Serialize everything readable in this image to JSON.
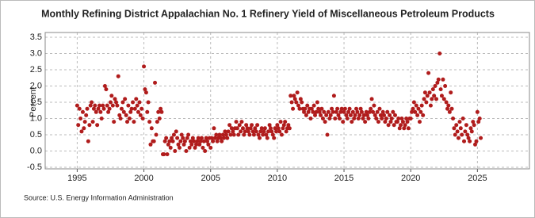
{
  "chart_data": {
    "type": "scatter",
    "title": "Monthly Refining District Appalachian No. 1 Refinery Yield of Miscellaneous Petroleum Products",
    "y_label": "Percent",
    "source": "Source: U.S. Energy Information Administration",
    "color": "#b01c1c",
    "grid": true,
    "xlim": [
      1992.6,
      2028.9
    ],
    "xticks": [
      1995,
      2000,
      2005,
      2010,
      2015,
      2020,
      2025
    ],
    "ylim": [
      -0.5,
      3.5
    ],
    "yticks": [
      {
        "value": -0.5,
        "label": "-0.5"
      },
      {
        "value": 0,
        "label": "0.0"
      },
      {
        "value": 0.5,
        "label": "0.5"
      },
      {
        "value": 1,
        "label": "1.0"
      },
      {
        "value": 1.5,
        "label": "1.5"
      },
      {
        "value": 2,
        "label": "2.0"
      },
      {
        "value": 2.5,
        "label": "2.5"
      },
      {
        "value": 3,
        "label": "3.0"
      },
      {
        "value": 3.5,
        "label": "3.5"
      }
    ],
    "x": [
      1995,
      1995.08,
      1995.17,
      1995.25,
      1995.33,
      1995.42,
      1995.5,
      1995.58,
      1995.67,
      1995.75,
      1995.83,
      1995.92,
      1996,
      1996.08,
      1996.17,
      1996.25,
      1996.33,
      1996.42,
      1996.5,
      1996.58,
      1996.67,
      1996.75,
      1996.83,
      1996.92,
      1997,
      1997.08,
      1997.17,
      1997.25,
      1997.33,
      1997.42,
      1997.5,
      1997.58,
      1997.67,
      1997.75,
      1997.83,
      1997.92,
      1998,
      1998.08,
      1998.17,
      1998.25,
      1998.33,
      1998.42,
      1998.5,
      1998.58,
      1998.67,
      1998.75,
      1998.83,
      1998.92,
      1999,
      1999.08,
      1999.17,
      1999.25,
      1999.33,
      1999.42,
      1999.5,
      1999.58,
      1999.67,
      1999.75,
      1999.83,
      1999.92,
      2000,
      2000.08,
      2000.17,
      2000.25,
      2000.33,
      2000.42,
      2000.5,
      2000.58,
      2000.67,
      2000.75,
      2000.83,
      2000.92,
      2001,
      2001.08,
      2001.17,
      2001.25,
      2001.33,
      2001.42,
      2001.5,
      2001.58,
      2001.67,
      2001.75,
      2001.83,
      2001.92,
      2002,
      2002.08,
      2002.17,
      2002.25,
      2002.33,
      2002.42,
      2002.5,
      2002.58,
      2002.67,
      2002.75,
      2002.83,
      2002.92,
      2003,
      2003.08,
      2003.17,
      2003.25,
      2003.33,
      2003.42,
      2003.5,
      2003.58,
      2003.67,
      2003.75,
      2003.83,
      2003.92,
      2004,
      2004.08,
      2004.17,
      2004.25,
      2004.33,
      2004.42,
      2004.5,
      2004.58,
      2004.67,
      2004.75,
      2004.83,
      2004.92,
      2005,
      2005.08,
      2005.17,
      2005.25,
      2005.33,
      2005.42,
      2005.5,
      2005.58,
      2005.67,
      2005.75,
      2005.83,
      2005.92,
      2006,
      2006.08,
      2006.17,
      2006.25,
      2006.33,
      2006.42,
      2006.5,
      2006.58,
      2006.67,
      2006.75,
      2006.83,
      2006.92,
      2007,
      2007.08,
      2007.17,
      2007.25,
      2007.33,
      2007.42,
      2007.5,
      2007.58,
      2007.67,
      2007.75,
      2007.83,
      2007.92,
      2008,
      2008.08,
      2008.17,
      2008.25,
      2008.33,
      2008.42,
      2008.5,
      2008.58,
      2008.67,
      2008.75,
      2008.83,
      2008.92,
      2009,
      2009.08,
      2009.17,
      2009.25,
      2009.33,
      2009.42,
      2009.5,
      2009.58,
      2009.67,
      2009.75,
      2009.83,
      2009.92,
      2010,
      2010.08,
      2010.17,
      2010.25,
      2010.33,
      2010.42,
      2010.5,
      2010.58,
      2010.67,
      2010.75,
      2010.83,
      2010.92,
      2011,
      2011.08,
      2011.17,
      2011.25,
      2011.33,
      2011.42,
      2011.5,
      2011.58,
      2011.67,
      2011.75,
      2011.83,
      2011.92,
      2012,
      2012.08,
      2012.17,
      2012.25,
      2012.33,
      2012.42,
      2012.5,
      2012.58,
      2012.67,
      2012.75,
      2012.83,
      2012.92,
      2013,
      2013.08,
      2013.17,
      2013.25,
      2013.33,
      2013.42,
      2013.5,
      2013.58,
      2013.67,
      2013.75,
      2013.83,
      2013.92,
      2014,
      2014.08,
      2014.17,
      2014.25,
      2014.33,
      2014.42,
      2014.5,
      2014.58,
      2014.67,
      2014.75,
      2014.83,
      2014.92,
      2015,
      2015.08,
      2015.17,
      2015.25,
      2015.33,
      2015.42,
      2015.5,
      2015.58,
      2015.67,
      2015.75,
      2015.83,
      2015.92,
      2016,
      2016.08,
      2016.17,
      2016.25,
      2016.33,
      2016.42,
      2016.5,
      2016.58,
      2016.67,
      2016.75,
      2016.83,
      2016.92,
      2017,
      2017.08,
      2017.17,
      2017.25,
      2017.33,
      2017.42,
      2017.5,
      2017.58,
      2017.67,
      2017.75,
      2017.83,
      2017.92,
      2018,
      2018.08,
      2018.17,
      2018.25,
      2018.33,
      2018.42,
      2018.5,
      2018.58,
      2018.67,
      2018.75,
      2018.83,
      2018.92,
      2019,
      2019.08,
      2019.17,
      2019.25,
      2019.33,
      2019.42,
      2019.5,
      2019.58,
      2019.67,
      2019.75,
      2019.83,
      2019.92,
      2020,
      2020.08,
      2020.17,
      2020.25,
      2020.33,
      2020.42,
      2020.5,
      2020.58,
      2020.67,
      2020.75,
      2020.83,
      2020.92,
      2021,
      2021.08,
      2021.17,
      2021.25,
      2021.33,
      2021.42,
      2021.5,
      2021.58,
      2021.67,
      2021.75,
      2021.83,
      2021.92,
      2022,
      2022.08,
      2022.17,
      2022.25,
      2022.33,
      2022.42,
      2022.5,
      2022.58,
      2022.67,
      2022.75,
      2022.83,
      2022.92,
      2023,
      2023.08,
      2023.17,
      2023.25,
      2023.33,
      2023.42,
      2023.5,
      2023.58,
      2023.67,
      2023.75,
      2023.83,
      2023.92,
      2024,
      2024.08,
      2024.17,
      2024.25,
      2024.33,
      2024.42,
      2024.5,
      2024.58,
      2024.67,
      2024.75,
      2024.83,
      2024.92,
      2025,
      2025.08,
      2025.17,
      2025.25
    ],
    "values": [
      1.4,
      0.8,
      1.3,
      1.0,
      0.6,
      1.2,
      0.7,
      0.9,
      1.1,
      1.3,
      0.3,
      0.8,
      1.4,
      1.5,
      0.9,
      1.3,
      1.4,
      1.2,
      0.8,
      1.3,
      1.4,
      1.2,
      1.0,
      1.4,
      1.3,
      2.0,
      1.9,
      1.4,
      1.2,
      1.3,
      1.5,
      1.7,
      1.4,
      0.9,
      1.6,
      1.5,
      1.4,
      2.3,
      1.1,
      1.0,
      1.3,
      1.5,
      1.2,
      1.6,
      1.1,
      0.9,
      1.4,
      1.0,
      1.2,
      1.3,
      1.5,
      0.9,
      1.3,
      1.6,
      1.4,
      1.2,
      1.5,
      1.1,
      1.3,
      1.0,
      2.6,
      1.9,
      1.8,
      1.2,
      1.5,
      0.9,
      0.2,
      0.7,
      0.3,
      0.3,
      2.1,
      0.5,
      0.9,
      1.2,
      1.0,
      1.3,
      1.2,
      -0.1,
      -0.1,
      0.3,
      0.4,
      -0.1,
      0.2,
      0.3,
      0.1,
      0.4,
      0.3,
      0.5,
      0.0,
      0.6,
      0.4,
      0.2,
      0.1,
      0.3,
      0.5,
      0.4,
      0.2,
      0.3,
      0.0,
      0.4,
      0.5,
      0.1,
      0.3,
      0.2,
      0.4,
      0.3,
      0.1,
      0.2,
      0.3,
      0.4,
      0.2,
      0.3,
      0.4,
      0.1,
      0.3,
      0.0,
      0.4,
      0.3,
      0.2,
      0.4,
      0.1,
      0.4,
      0.3,
      0.7,
      0.4,
      0.5,
      0.3,
      0.4,
      0.5,
      0.4,
      0.3,
      0.5,
      0.4,
      0.6,
      0.5,
      0.4,
      0.6,
      0.8,
      0.5,
      0.7,
      0.6,
      0.5,
      0.7,
      0.9,
      0.7,
      0.5,
      0.8,
      0.6,
      0.9,
      0.7,
      0.5,
      0.6,
      0.8,
      0.7,
      0.6,
      0.5,
      0.7,
      0.8,
      0.6,
      0.5,
      0.7,
      0.6,
      0.8,
      0.5,
      0.4,
      0.6,
      0.7,
      0.5,
      0.6,
      0.7,
      0.5,
      0.4,
      0.6,
      0.8,
      0.7,
      0.6,
      0.5,
      0.4,
      0.7,
      0.6,
      0.8,
      0.7,
      0.6,
      0.9,
      0.5,
      0.7,
      0.8,
      0.9,
      0.6,
      0.7,
      0.8,
      0.7,
      1.7,
      1.5,
      1.3,
      1.7,
      1.6,
      1.5,
      1.8,
      1.4,
      1.3,
      1.6,
      1.5,
      1.3,
      1.2,
      1.3,
      1.1,
      1.4,
      1.2,
      1.3,
      1.0,
      1.3,
      1.2,
      1.4,
      1.1,
      1.2,
      1.5,
      1.3,
      1.2,
      1.1,
      1.3,
      1.0,
      1.2,
      0.9,
      1.1,
      0.5,
      1.2,
      1.0,
      1.1,
      1.3,
      1.2,
      1.7,
      1.0,
      1.2,
      1.3,
      1.1,
      1.0,
      1.2,
      1.3,
      0.9,
      1.2,
      1.3,
      1.1,
      1.0,
      1.2,
      1.3,
      1.1,
      0.9,
      1.2,
      1.0,
      1.1,
      1.3,
      1.2,
      1.0,
      1.1,
      1.3,
      1.2,
      1.0,
      1.1,
      0.9,
      1.2,
      1.1,
      1.0,
      1.2,
      1.3,
      1.6,
      1.2,
      1.4,
      1.1,
      1.0,
      1.2,
      0.9,
      1.3,
      1.1,
      1.0,
      1.2,
      1.1,
      0.9,
      1.0,
      1.2,
      0.8,
      1.1,
      0.9,
      1.0,
      1.2,
      0.8,
      1.1,
      0.9,
      0.9,
      1.0,
      0.7,
      0.8,
      1.0,
      0.9,
      0.7,
      0.8,
      1.0,
      0.9,
      0.7,
      1.0,
      1.0,
      1.2,
      1.3,
      1.5,
      1.2,
      1.4,
      1.1,
      1.3,
      0.9,
      1.2,
      1.4,
      1.1,
      1.6,
      1.8,
      1.5,
      1.7,
      2.4,
      1.8,
      1.4,
      1.6,
      1.9,
      1.7,
      2.0,
      1.6,
      2.1,
      2.2,
      3.0,
      1.9,
      1.7,
      2.2,
      1.6,
      2.0,
      1.5,
      1.3,
      1.4,
      1.2,
      1.8,
      1.3,
      1.0,
      0.7,
      0.5,
      0.8,
      0.6,
      0.4,
      0.9,
      0.7,
      0.5,
      1.0,
      0.3,
      0.6,
      0.8,
      0.5,
      0.4,
      0.3,
      0.7,
      0.6,
      0.9,
      0.8,
      0.2,
      0.3,
      1.2,
      0.9,
      1.0,
      0.4
    ]
  }
}
